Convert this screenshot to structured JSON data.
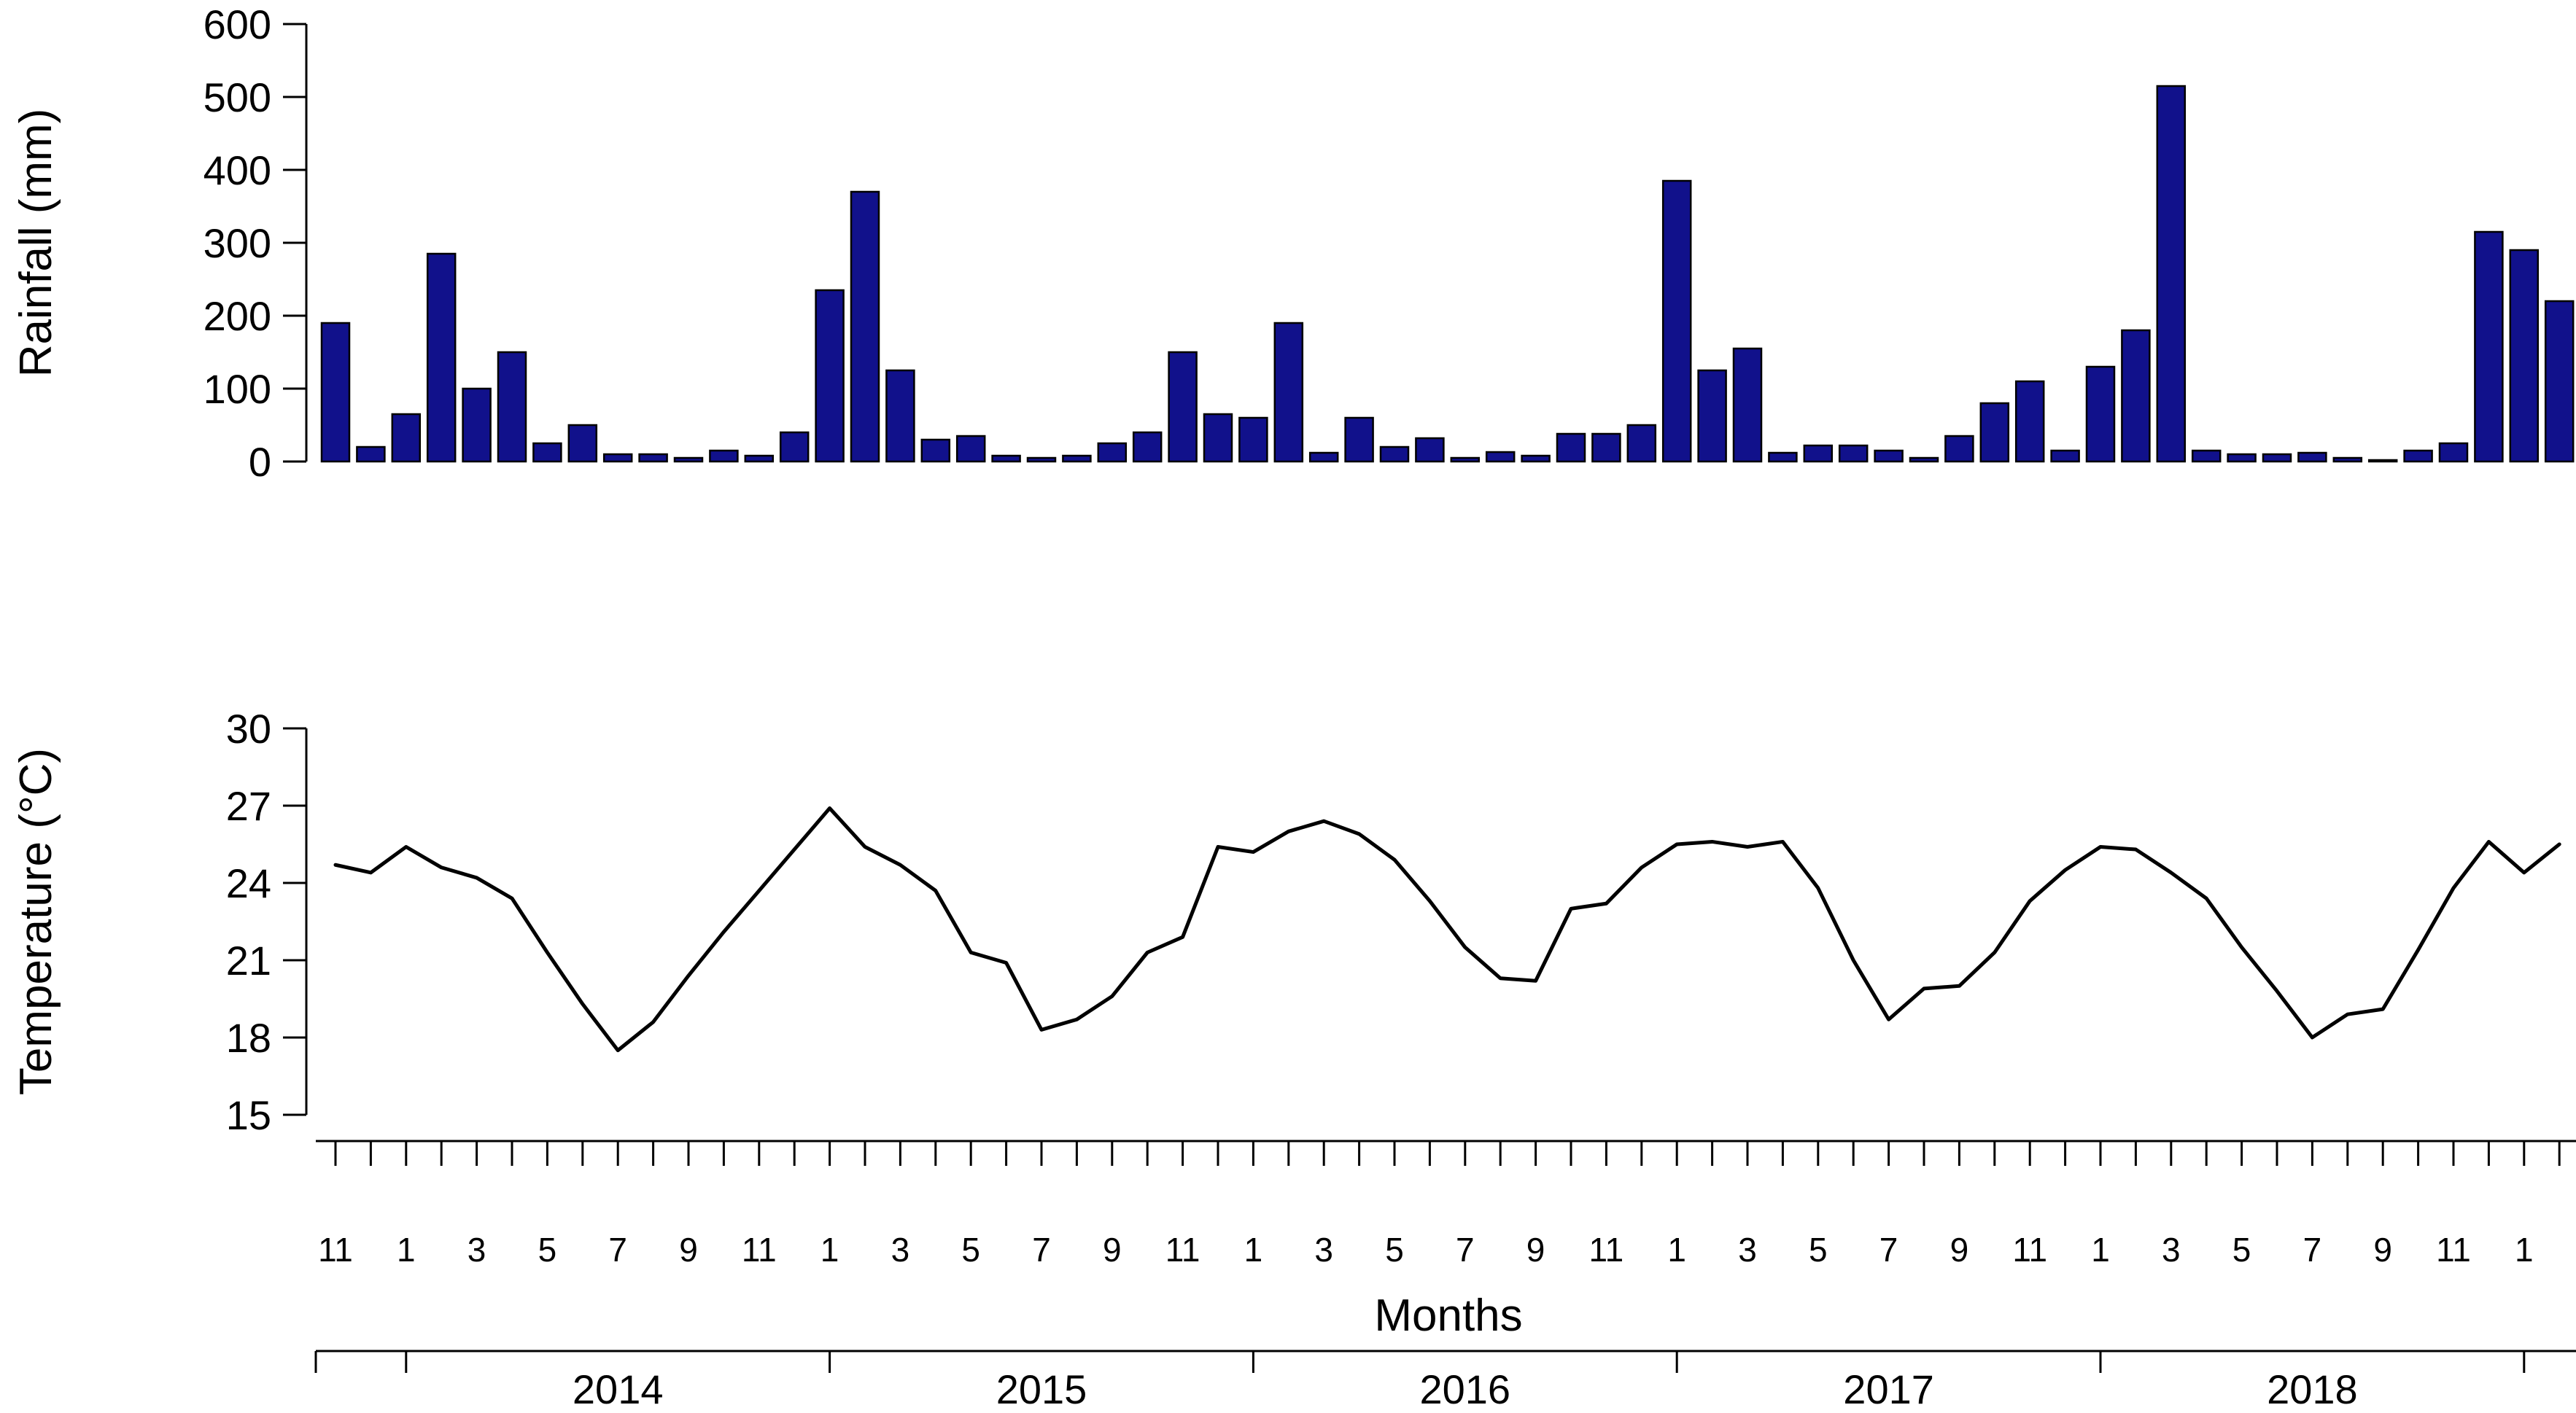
{
  "figure": {
    "background": "#ffffff",
    "bar_fill": "#11118B",
    "bar_stroke": "#000000",
    "line_color": "#000000",
    "axis_color": "#000000"
  },
  "labels": {
    "rain_axis_title": "Rainfall (mm)",
    "temp_axis_title": "Temperature (°C)",
    "months_axis_title": "Months"
  },
  "chart_data": [
    {
      "type": "bar",
      "title": "",
      "ylabel": "Rainfall (mm)",
      "xlabel": "",
      "ylim": [
        0,
        600
      ],
      "y_ticks": [
        0,
        100,
        200,
        300,
        400,
        500,
        600
      ],
      "grid": false,
      "legend": "none",
      "categories": [
        "2013-11",
        "2013-12",
        "2014-01",
        "2014-02",
        "2014-03",
        "2014-04",
        "2014-05",
        "2014-06",
        "2014-07",
        "2014-08",
        "2014-09",
        "2014-10",
        "2014-11",
        "2014-12",
        "2015-01",
        "2015-02",
        "2015-03",
        "2015-04",
        "2015-05",
        "2015-06",
        "2015-07",
        "2015-08",
        "2015-09",
        "2015-10",
        "2015-11",
        "2015-12",
        "2016-01",
        "2016-02",
        "2016-03",
        "2016-04",
        "2016-05",
        "2016-06",
        "2016-07",
        "2016-08",
        "2016-09",
        "2016-10",
        "2016-11",
        "2016-12",
        "2017-01",
        "2017-02",
        "2017-03",
        "2017-04",
        "2017-05",
        "2017-06",
        "2017-07",
        "2017-08",
        "2017-09",
        "2017-10",
        "2017-11",
        "2017-12",
        "2018-01",
        "2018-02",
        "2018-03",
        "2018-04",
        "2018-05",
        "2018-06",
        "2018-07",
        "2018-08",
        "2018-09",
        "2018-10",
        "2018-11",
        "2018-12",
        "2019-01",
        "2019-02"
      ],
      "values": [
        190,
        20,
        65,
        285,
        100,
        150,
        25,
        50,
        10,
        10,
        5,
        15,
        8,
        40,
        235,
        370,
        125,
        30,
        35,
        8,
        5,
        8,
        25,
        40,
        150,
        65,
        60,
        190,
        12,
        60,
        20,
        32,
        5,
        13,
        8,
        38,
        38,
        50,
        385,
        125,
        155,
        12,
        22,
        22,
        15,
        5,
        35,
        80,
        110,
        15,
        130,
        180,
        515,
        15,
        10,
        10,
        12,
        5,
        2,
        15,
        25,
        315,
        290,
        220
      ]
    },
    {
      "type": "line",
      "title": "",
      "ylabel": "Temperature (°C)",
      "xlabel": "Months",
      "ylim": [
        15,
        30
      ],
      "y_ticks": [
        15,
        18,
        21,
        24,
        27,
        30
      ],
      "grid": false,
      "legend": "none",
      "categories": [
        "2013-11",
        "2013-12",
        "2014-01",
        "2014-02",
        "2014-03",
        "2014-04",
        "2014-05",
        "2014-06",
        "2014-07",
        "2014-08",
        "2014-09",
        "2014-10",
        "2014-11",
        "2014-12",
        "2015-01",
        "2015-02",
        "2015-03",
        "2015-04",
        "2015-05",
        "2015-06",
        "2015-07",
        "2015-08",
        "2015-09",
        "2015-10",
        "2015-11",
        "2015-12",
        "2016-01",
        "2016-02",
        "2016-03",
        "2016-04",
        "2016-05",
        "2016-06",
        "2016-07",
        "2016-08",
        "2016-09",
        "2016-10",
        "2016-11",
        "2016-12",
        "2017-01",
        "2017-02",
        "2017-03",
        "2017-04",
        "2017-05",
        "2017-06",
        "2017-07",
        "2017-08",
        "2017-09",
        "2017-10",
        "2017-11",
        "2017-12",
        "2018-01",
        "2018-02",
        "2018-03",
        "2018-04",
        "2018-05",
        "2018-06",
        "2018-07",
        "2018-08",
        "2018-09",
        "2018-10",
        "2018-11",
        "2018-12",
        "2019-01",
        "2019-02"
      ],
      "values": [
        24.7,
        24.4,
        25.4,
        24.6,
        24.2,
        23.4,
        21.3,
        19.3,
        17.5,
        18.6,
        20.4,
        22.1,
        23.7,
        25.3,
        26.9,
        25.4,
        24.7,
        23.7,
        21.3,
        20.9,
        18.3,
        18.7,
        19.6,
        21.3,
        21.9,
        25.4,
        25.2,
        26.0,
        26.4,
        25.9,
        24.9,
        23.3,
        21.5,
        20.3,
        20.2,
        23.0,
        23.2,
        24.6,
        25.5,
        25.6,
        25.4,
        25.6,
        23.8,
        21.0,
        18.7,
        19.9,
        20.0,
        21.3,
        23.3,
        24.5,
        25.4,
        25.3,
        24.4,
        23.4,
        21.5,
        19.8,
        18.0,
        18.9,
        19.1,
        21.4,
        23.8,
        25.6,
        24.4,
        25.5
      ]
    }
  ],
  "x_axis": {
    "month_tick_labels": [
      "11",
      "1",
      "3",
      "5",
      "7",
      "9",
      "11",
      "1",
      "3",
      "5",
      "7",
      "9",
      "11",
      "1",
      "3",
      "5",
      "7",
      "9",
      "11",
      "1",
      "3",
      "5",
      "7",
      "9",
      "11",
      "1",
      "3",
      "5",
      "7",
      "9",
      "11",
      "1"
    ],
    "year_labels": [
      "2014",
      "2015",
      "2016",
      "2017",
      "2018"
    ]
  }
}
